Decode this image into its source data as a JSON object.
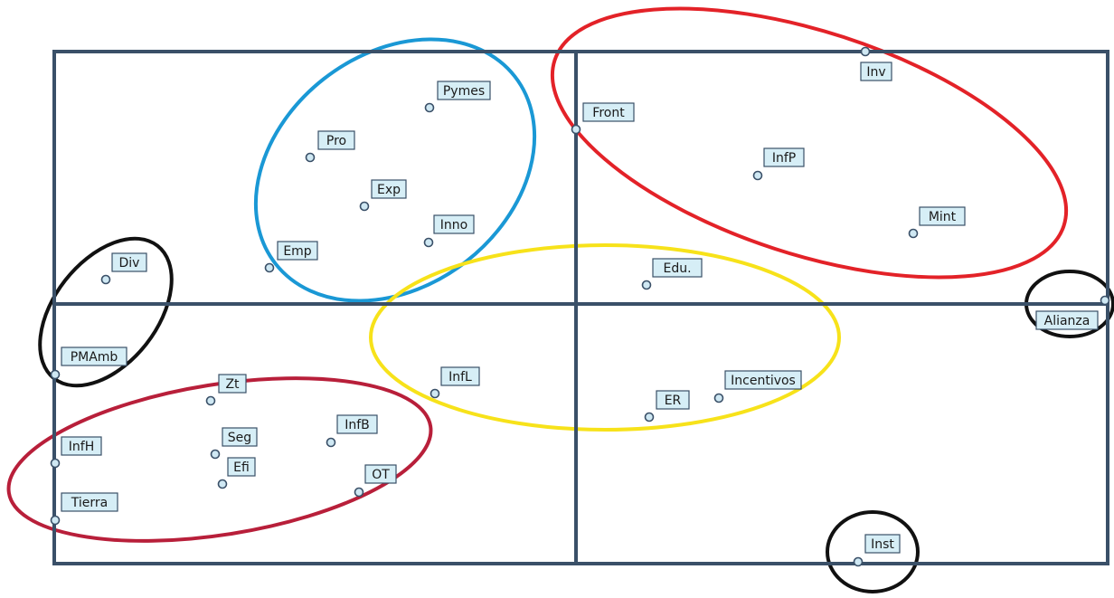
{
  "colors": {
    "frame": "#3a5068",
    "point_fill": "#cfe8f3",
    "point_stroke": "#3a5068",
    "label_fill": "#d6eef6",
    "label_stroke": "#3a5068",
    "label_text": "#1a1a1a",
    "cluster_blue": "#1a98d5",
    "cluster_red": "#e32228",
    "cluster_yellow": "#f7e21a",
    "cluster_crimson": "#b81f3a",
    "cluster_black": "#111111"
  },
  "points": [
    {
      "id": "pymes",
      "label": "Pymes"
    },
    {
      "id": "pro",
      "label": "Pro"
    },
    {
      "id": "exp",
      "label": "Exp"
    },
    {
      "id": "inno",
      "label": "Inno"
    },
    {
      "id": "emp",
      "label": "Emp"
    },
    {
      "id": "div",
      "label": "Div"
    },
    {
      "id": "inv",
      "label": "Inv"
    },
    {
      "id": "front",
      "label": "Front"
    },
    {
      "id": "infp",
      "label": "InfP"
    },
    {
      "id": "mint",
      "label": "Mint"
    },
    {
      "id": "edu",
      "label": "Edu."
    },
    {
      "id": "alianza",
      "label": "Alianza"
    },
    {
      "id": "pmamb",
      "label": "PMAmb"
    },
    {
      "id": "zt",
      "label": "Zt"
    },
    {
      "id": "infl",
      "label": "InfL"
    },
    {
      "id": "infb",
      "label": "InfB"
    },
    {
      "id": "seg",
      "label": "Seg"
    },
    {
      "id": "efi",
      "label": "Efi"
    },
    {
      "id": "infh",
      "label": "InfH"
    },
    {
      "id": "ot",
      "label": "OT"
    },
    {
      "id": "tierra",
      "label": "Tierra"
    },
    {
      "id": "er",
      "label": "ER"
    },
    {
      "id": "incentivos",
      "label": "Incentivos"
    },
    {
      "id": "inst",
      "label": "Inst"
    }
  ],
  "clusters": [
    {
      "id": "blue",
      "color_key": "cluster_blue",
      "members": [
        "pymes",
        "pro",
        "exp",
        "inno",
        "emp"
      ]
    },
    {
      "id": "red",
      "color_key": "cluster_red",
      "members": [
        "inv",
        "front",
        "infp",
        "mint"
      ]
    },
    {
      "id": "yellow",
      "color_key": "cluster_yellow",
      "members": [
        "infl",
        "er",
        "incentivos"
      ]
    },
    {
      "id": "crimson",
      "color_key": "cluster_crimson",
      "members": [
        "zt",
        "seg",
        "efi",
        "infb",
        "infh",
        "ot",
        "tierra"
      ]
    },
    {
      "id": "black-left",
      "color_key": "cluster_black",
      "members": [
        "div",
        "pmamb"
      ]
    },
    {
      "id": "black-right",
      "color_key": "cluster_black",
      "members": [
        "alianza"
      ]
    },
    {
      "id": "black-bottom",
      "color_key": "cluster_black",
      "members": [
        "inst"
      ]
    }
  ]
}
